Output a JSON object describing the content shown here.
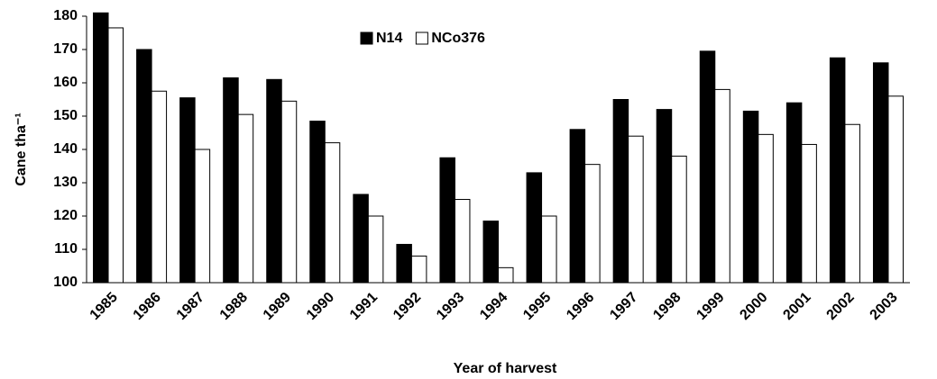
{
  "chart_data": {
    "type": "bar",
    "x_label": "Year of harvest",
    "y_label": "Cane tha⁻¹",
    "categories": [
      "1985",
      "1986",
      "1987",
      "1988",
      "1989",
      "1990",
      "1991",
      "1992",
      "1993",
      "1994",
      "1995",
      "1996",
      "1997",
      "1998",
      "1999",
      "2000",
      "2001",
      "2002",
      "2003"
    ],
    "series": [
      {
        "name": "N14",
        "color": "#000000",
        "values": [
          181,
          170,
          155.5,
          161.5,
          161,
          148.5,
          126.5,
          111.5,
          137.5,
          118.5,
          133,
          146,
          155,
          152,
          169.5,
          151.5,
          154,
          167.5,
          166
        ]
      },
      {
        "name": "NCo376",
        "color": "#ffffff",
        "values": [
          176.5,
          157.5,
          140,
          150.5,
          154.5,
          142,
          120,
          108,
          125,
          104.5,
          120,
          135.5,
          144,
          138,
          158,
          144.5,
          141.5,
          147.5,
          156
        ]
      }
    ],
    "ylim": [
      100,
      180
    ],
    "yticks": [
      100,
      110,
      120,
      130,
      140,
      150,
      160,
      170,
      180
    ],
    "grid": false
  }
}
